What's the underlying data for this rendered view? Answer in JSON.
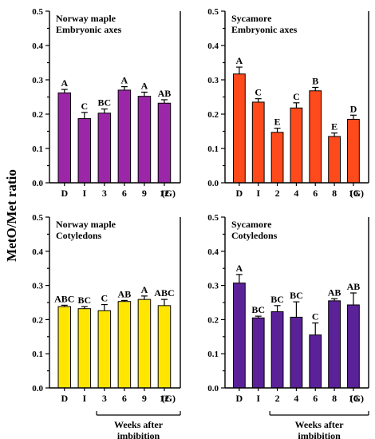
{
  "figure": {
    "ylabel": "MetO/Met ratio",
    "weeks_label_line1": "Weeks after",
    "weeks_label_line2": "imbibition"
  },
  "chart_data": [
    {
      "type": "bar",
      "title_line1": "Norway maple",
      "title_line2": "Embryonic axes",
      "color": "#9b26a8",
      "categories": [
        "D",
        "I",
        "3",
        "6",
        "9",
        "12"
      ],
      "x_suffix": "(G)",
      "values": [
        0.262,
        0.187,
        0.203,
        0.27,
        0.252,
        0.232
      ],
      "errors": [
        0.01,
        0.018,
        0.012,
        0.01,
        0.012,
        0.01
      ],
      "letters": [
        "A",
        "C",
        "BC",
        "A",
        "A",
        "AB"
      ],
      "ylim": [
        0,
        0.5
      ],
      "yticks": [
        "0.0",
        "0.1",
        "0.2",
        "0.3",
        "0.4",
        "0.5"
      ]
    },
    {
      "type": "bar",
      "title_line1": "Sycamore",
      "title_line2": "Embryonic axes",
      "color": "#ff4a1c",
      "categories": [
        "D",
        "I",
        "2",
        "4",
        "6",
        "8",
        "10"
      ],
      "x_suffix": "(G)",
      "values": [
        0.317,
        0.235,
        0.147,
        0.218,
        0.268,
        0.135,
        0.185
      ],
      "errors": [
        0.02,
        0.01,
        0.012,
        0.015,
        0.01,
        0.01,
        0.012
      ],
      "letters": [
        "A",
        "C",
        "E",
        "C",
        "B",
        "E",
        "D"
      ],
      "ylim": [
        0,
        0.5
      ],
      "yticks": [
        "0.0",
        "0.1",
        "0.2",
        "0.3",
        "0.4",
        "0.5"
      ]
    },
    {
      "type": "bar",
      "title_line1": "Norway maple",
      "title_line2": "Cotyledons",
      "color": "#ffe600",
      "categories": [
        "D",
        "I",
        "3",
        "6",
        "9",
        "12"
      ],
      "x_suffix": "(G)",
      "values": [
        0.238,
        0.232,
        0.226,
        0.253,
        0.259,
        0.241
      ],
      "errors": [
        0.004,
        0.006,
        0.018,
        0.003,
        0.01,
        0.018
      ],
      "letters": [
        "ABC",
        "BC",
        "C",
        "AB",
        "A",
        "ABC"
      ],
      "ylim": [
        0,
        0.5
      ],
      "yticks": [
        "0.0",
        "0.1",
        "0.2",
        "0.3",
        "0.4",
        "0.5"
      ]
    },
    {
      "type": "bar",
      "title_line1": "Sycamore",
      "title_line2": "Cotyledons",
      "color": "#5b2199",
      "categories": [
        "D",
        "I",
        "2",
        "4",
        "6",
        "8",
        "10"
      ],
      "x_suffix": "(G)",
      "values": [
        0.307,
        0.205,
        0.223,
        0.207,
        0.155,
        0.255,
        0.243
      ],
      "errors": [
        0.025,
        0.005,
        0.018,
        0.045,
        0.035,
        0.006,
        0.035
      ],
      "letters": [
        "A",
        "BC",
        "BC",
        "BC",
        "C",
        "AB",
        "AB"
      ],
      "ylim": [
        0,
        0.5
      ],
      "yticks": [
        "0.0",
        "0.1",
        "0.2",
        "0.3",
        "0.4",
        "0.5"
      ]
    }
  ]
}
